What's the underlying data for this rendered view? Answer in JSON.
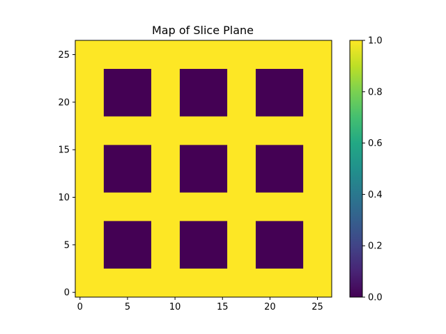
{
  "chart_data": {
    "type": "heatmap",
    "title": "Map of Slice Plane",
    "xlabel": "",
    "ylabel": "",
    "xlim": [
      -0.5,
      26.5
    ],
    "ylim": [
      -0.5,
      26.5
    ],
    "x_ticks": [
      0,
      5,
      10,
      15,
      20,
      25
    ],
    "y_ticks": [
      0,
      5,
      10,
      15,
      20,
      25
    ],
    "grid": false,
    "colormap": "viridis",
    "value_range": [
      0.0,
      1.0
    ],
    "background_value": 1.0,
    "background_color": "#fde725",
    "low_color": "#440154",
    "blocks": [
      {
        "x_range": [
          3,
          7
        ],
        "y_range": [
          3,
          7
        ],
        "value": 0.0
      },
      {
        "x_range": [
          11,
          15
        ],
        "y_range": [
          3,
          7
        ],
        "value": 0.0
      },
      {
        "x_range": [
          19,
          23
        ],
        "y_range": [
          3,
          7
        ],
        "value": 0.0
      },
      {
        "x_range": [
          3,
          7
        ],
        "y_range": [
          11,
          15
        ],
        "value": 0.0
      },
      {
        "x_range": [
          11,
          15
        ],
        "y_range": [
          11,
          15
        ],
        "value": 0.0
      },
      {
        "x_range": [
          19,
          23
        ],
        "y_range": [
          11,
          15
        ],
        "value": 0.0
      },
      {
        "x_range": [
          3,
          7
        ],
        "y_range": [
          19,
          23
        ],
        "value": 0.0
      },
      {
        "x_range": [
          11,
          15
        ],
        "y_range": [
          19,
          23
        ],
        "value": 0.0
      },
      {
        "x_range": [
          19,
          23
        ],
        "y_range": [
          19,
          23
        ],
        "value": 0.0
      }
    ],
    "colorbar": {
      "ticks": [
        0.0,
        0.2,
        0.4,
        0.6,
        0.8,
        1.0
      ],
      "tick_labels": [
        "0.0",
        "0.2",
        "0.4",
        "0.6",
        "0.8",
        "1.0"
      ]
    }
  }
}
